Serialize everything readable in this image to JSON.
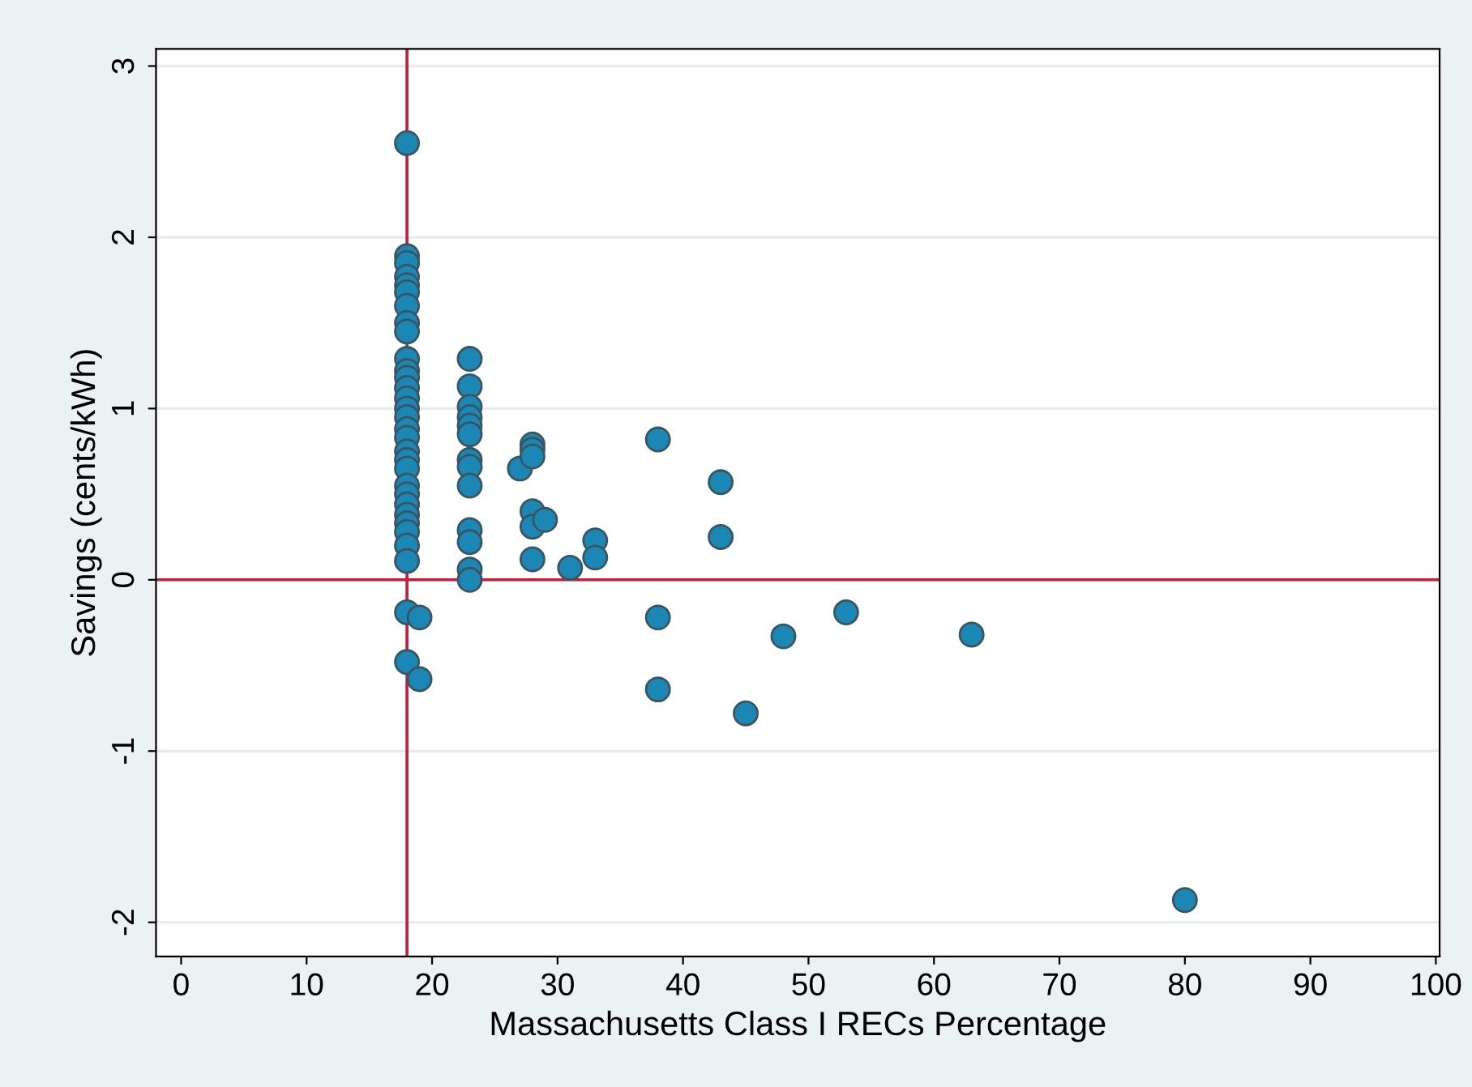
{
  "chart_data": {
    "type": "scatter",
    "xlabel": "Massachusetts Class I RECs Percentage",
    "ylabel": "Savings (cents/kWh)",
    "x": [
      18,
      18,
      18,
      18,
      18,
      18,
      18,
      18,
      18,
      18,
      18,
      18,
      18,
      18,
      18,
      18,
      18,
      18,
      18,
      18,
      18,
      18,
      18,
      18,
      18,
      18,
      18,
      18,
      18,
      18,
      18,
      19,
      19,
      23,
      23,
      23,
      23,
      23,
      23,
      23,
      23,
      23,
      23,
      23,
      23,
      23,
      27,
      28,
      28,
      28,
      28,
      28,
      28,
      29,
      31,
      33,
      33,
      38,
      38,
      38,
      43,
      43,
      45,
      48,
      53,
      63,
      80
    ],
    "series": [
      {
        "color": "#1a87b5",
        "values": [
          2.55,
          1.89,
          1.85,
          1.77,
          1.72,
          1.68,
          1.6,
          1.5,
          1.45,
          1.29,
          1.22,
          1.18,
          1.12,
          1.06,
          1.0,
          0.95,
          0.88,
          0.83,
          0.75,
          0.7,
          0.65,
          0.55,
          0.5,
          0.44,
          0.38,
          0.33,
          0.28,
          0.2,
          0.11,
          -0.19,
          -0.48,
          -0.22,
          -0.58,
          1.29,
          1.13,
          1.01,
          0.95,
          0.9,
          0.85,
          0.7,
          0.66,
          0.55,
          0.29,
          0.22,
          0.06,
          0.0,
          0.65,
          0.79,
          0.76,
          0.72,
          0.4,
          0.31,
          0.12,
          0.35,
          0.07,
          0.23,
          0.13,
          0.82,
          -0.22,
          -0.64,
          0.57,
          0.25,
          -0.78,
          -0.33,
          -0.19,
          -0.32,
          -1.87
        ]
      }
    ],
    "xlim": [
      -2,
      100.3
    ],
    "ylim": [
      -2.2,
      3.1
    ],
    "xticks": [
      0,
      10,
      20,
      30,
      40,
      50,
      60,
      70,
      80,
      90,
      100
    ],
    "yticks": [
      -2,
      -1,
      0,
      1,
      2,
      3
    ],
    "grid": "y",
    "marker": "circle",
    "legend": false,
    "ref_lines": [
      {
        "axis": "x",
        "value": 18,
        "color": "#c41e3a"
      },
      {
        "axis": "y",
        "value": 0,
        "color": "#c41e3a"
      }
    ]
  }
}
